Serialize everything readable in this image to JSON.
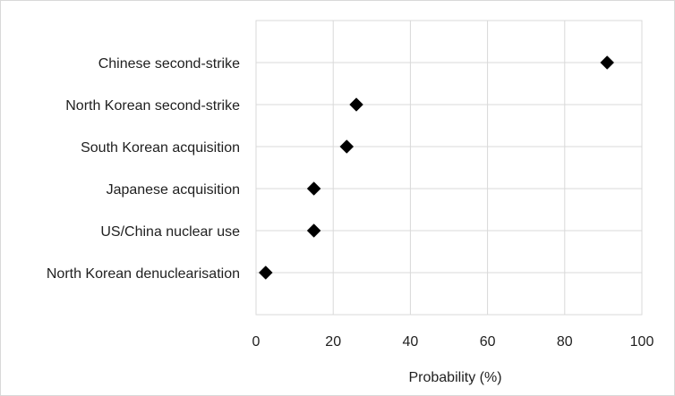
{
  "chart_data": {
    "type": "scatter",
    "title": "",
    "xlabel": "Probability (%)",
    "ylabel": "",
    "xlim": [
      0,
      100
    ],
    "xticks": [
      0,
      20,
      40,
      60,
      80,
      100
    ],
    "grid": true,
    "marker": "diamond",
    "marker_color": "#000000",
    "categories": [
      "Chinese second-strike",
      "North Korean second-strike",
      "South Korean acquisition",
      "Japanese acquisition",
      "US/China nuclear use",
      "North Korean denuclearisation"
    ],
    "values": [
      91,
      26,
      23.5,
      15,
      15,
      2.5
    ]
  }
}
